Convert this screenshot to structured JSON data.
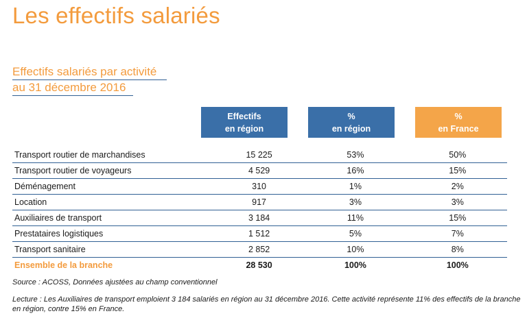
{
  "page_title": "Les effectifs salariés",
  "subtitle": {
    "line1": "Effectifs salariés par activité",
    "line2": "au 31 décembre 2016"
  },
  "columns": [
    {
      "line1": "Effectifs",
      "line2": "en région",
      "color": "#3a6fa8"
    },
    {
      "line1": "%",
      "line2": "en région",
      "color": "#3a6fa8"
    },
    {
      "line1": "%",
      "line2": "en France",
      "color": "#f4a549"
    }
  ],
  "rows": [
    {
      "label": "Transport routier de marchandises",
      "effectifs": "15 225",
      "pct_region": "53%",
      "pct_france": "50%"
    },
    {
      "label": "Transport routier de voyageurs",
      "effectifs": "4 529",
      "pct_region": "16%",
      "pct_france": "15%"
    },
    {
      "label": "Déménagement",
      "effectifs": "310",
      "pct_region": "1%",
      "pct_france": "2%"
    },
    {
      "label": "Location",
      "effectifs": "917",
      "pct_region": "3%",
      "pct_france": "3%"
    },
    {
      "label": "Auxiliaires de transport",
      "effectifs": "3 184",
      "pct_region": "11%",
      "pct_france": "15%"
    },
    {
      "label": "Prestataires logistiques",
      "effectifs": "1 512",
      "pct_region": "5%",
      "pct_france": "7%"
    },
    {
      "label": "Transport sanitaire",
      "effectifs": "2 852",
      "pct_region": "10%",
      "pct_france": "8%"
    }
  ],
  "total": {
    "label": "Ensemble de la branche",
    "effectifs": "28 530",
    "pct_region": "100%",
    "pct_france": "100%"
  },
  "source": "Source : ACOSS, Données ajustées au champ conventionnel",
  "reading": "Lecture : Les Auxiliaires de transport emploient 3 184 salariés en région au 31 décembre 2016. Cette activité représente 11% des effectifs de la branche en région, contre 15% en France.",
  "accent_color": "#f39b3d",
  "rule_color": "#2f5f93"
}
